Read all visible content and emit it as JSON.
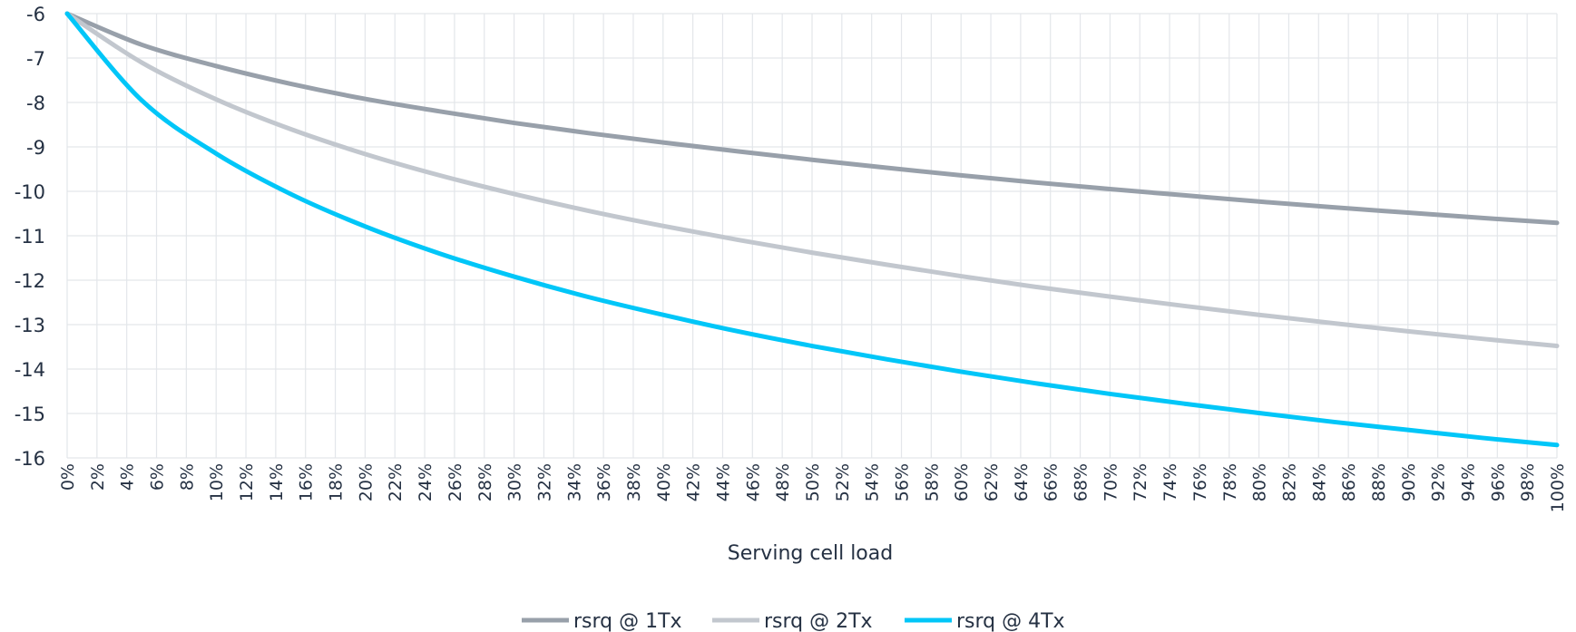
{
  "chart_data": {
    "type": "line",
    "title": "",
    "xlabel": "Serving cell load",
    "ylabel": "",
    "x_ticks": [
      "0%",
      "2%",
      "4%",
      "6%",
      "8%",
      "10%",
      "12%",
      "14%",
      "16%",
      "18%",
      "20%",
      "22%",
      "24%",
      "26%",
      "28%",
      "30%",
      "32%",
      "34%",
      "36%",
      "38%",
      "40%",
      "42%",
      "44%",
      "46%",
      "48%",
      "50%",
      "52%",
      "54%",
      "56%",
      "58%",
      "60%",
      "62%",
      "64%",
      "66%",
      "68%",
      "70%",
      "72%",
      "74%",
      "76%",
      "78%",
      "80%",
      "82%",
      "84%",
      "86%",
      "88%",
      "90%",
      "92%",
      "94%",
      "96%",
      "98%",
      "100%"
    ],
    "y_ticks": [
      -6,
      -7,
      -8,
      -9,
      -10,
      -11,
      -12,
      -13,
      -14,
      -15,
      -16
    ],
    "xlim": [
      0,
      100
    ],
    "ylim": [
      -16,
      -6
    ],
    "grid": true,
    "legend_position": "bottom-center",
    "x": [
      0,
      5,
      10,
      15,
      20,
      25,
      30,
      35,
      40,
      45,
      50,
      55,
      60,
      65,
      70,
      75,
      80,
      85,
      90,
      95,
      100
    ],
    "series": [
      {
        "name": "rsrq @ 1Tx",
        "color": "#98a0aa",
        "values": [
          -6.0,
          -6.7,
          -7.18,
          -7.58,
          -7.92,
          -8.2,
          -8.46,
          -8.69,
          -8.9,
          -9.1,
          -9.29,
          -9.47,
          -9.64,
          -9.8,
          -9.95,
          -10.09,
          -10.23,
          -10.36,
          -10.48,
          -10.6,
          -10.71
        ]
      },
      {
        "name": "rsrq @ 2Tx",
        "color": "#c2c7ce",
        "values": [
          -6.0,
          -7.1,
          -7.93,
          -8.6,
          -9.16,
          -9.64,
          -10.06,
          -10.44,
          -10.78,
          -11.09,
          -11.38,
          -11.65,
          -11.91,
          -12.15,
          -12.37,
          -12.58,
          -12.78,
          -12.97,
          -13.15,
          -13.32,
          -13.48
        ]
      },
      {
        "name": "rsrq @ 4Tx",
        "color": "#00c6f8",
        "values": [
          -6.0,
          -7.95,
          -9.15,
          -10.06,
          -10.79,
          -11.4,
          -11.92,
          -12.38,
          -12.78,
          -13.15,
          -13.48,
          -13.78,
          -14.06,
          -14.32,
          -14.56,
          -14.78,
          -14.99,
          -15.19,
          -15.37,
          -15.55,
          -15.71
        ]
      }
    ]
  }
}
